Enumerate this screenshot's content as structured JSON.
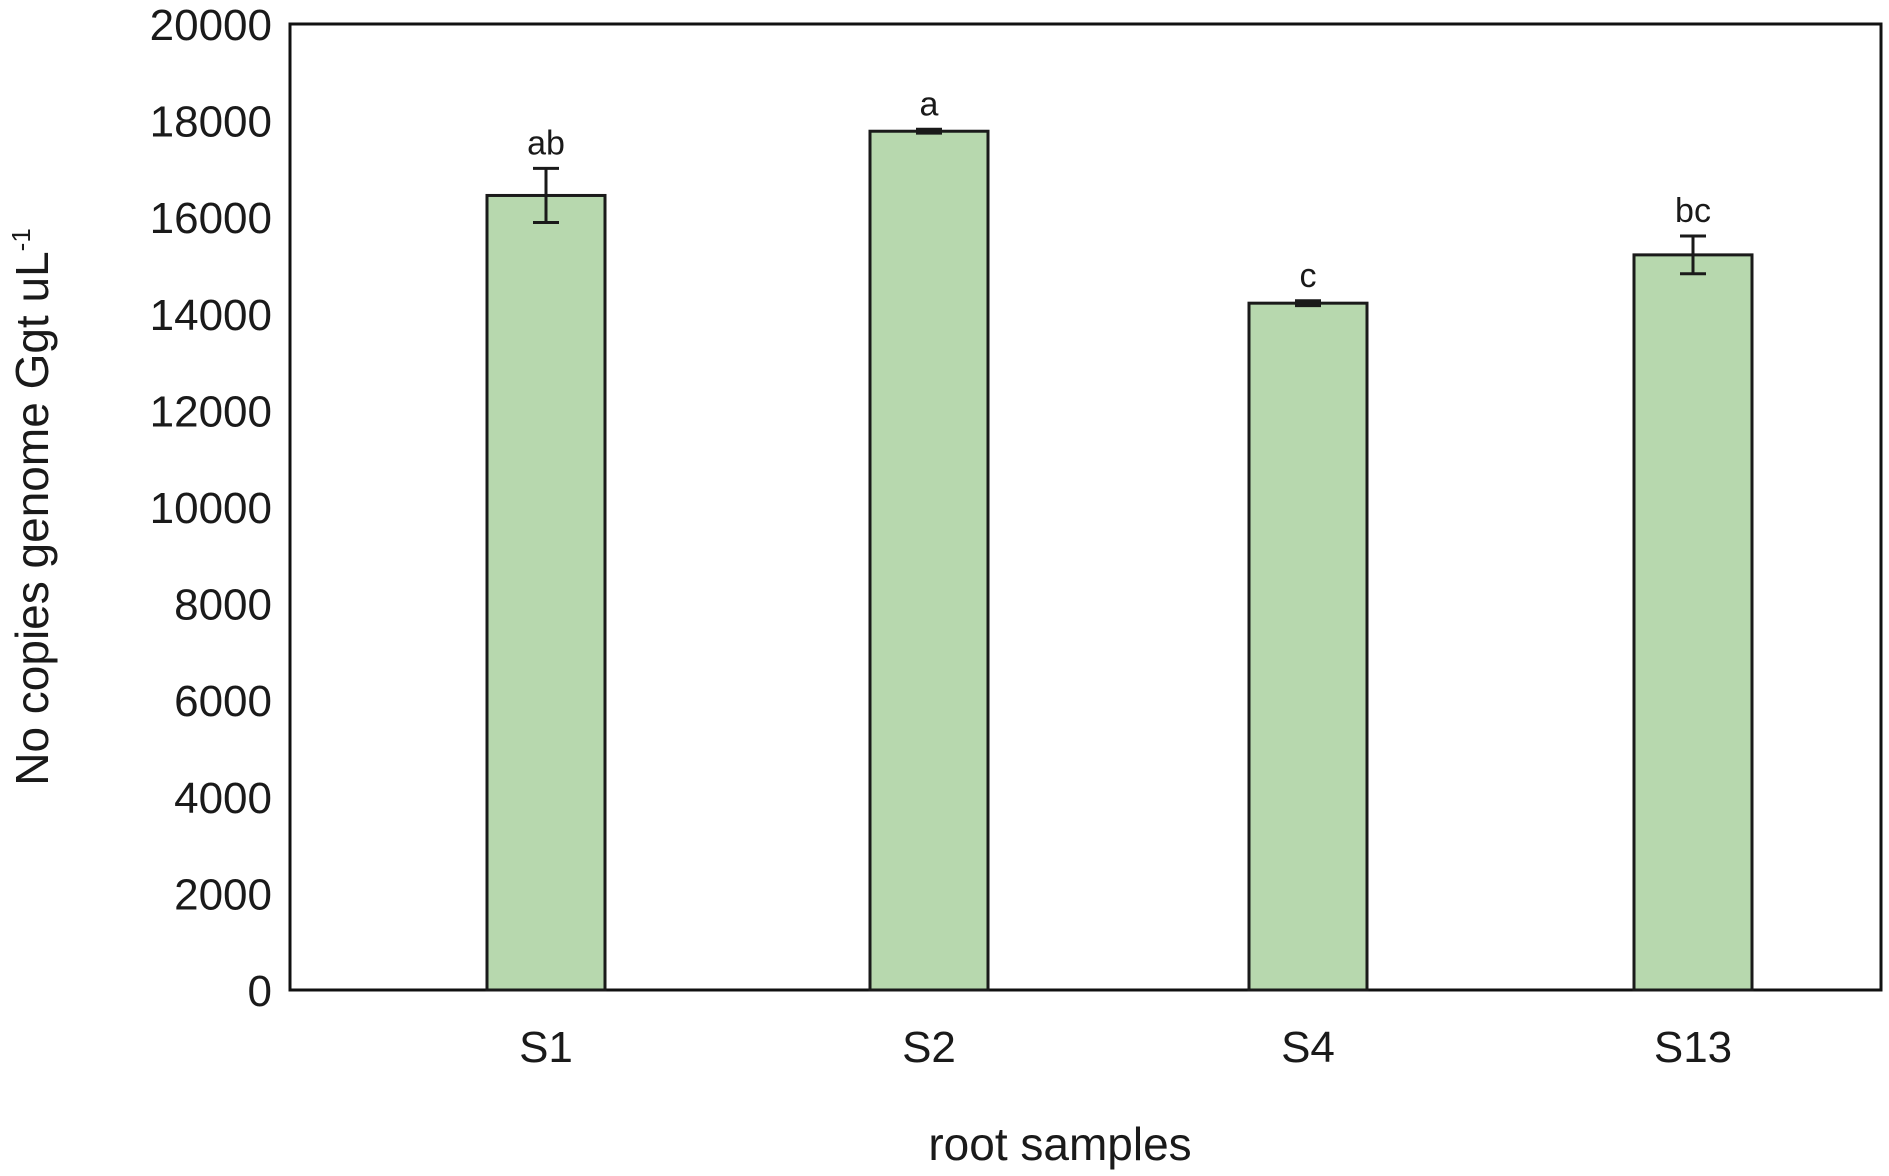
{
  "chart_data": {
    "type": "bar",
    "title": "",
    "xlabel": "root samples",
    "ylabel": {
      "main": "No copies genome Ggt  uL",
      "superscript": "-1"
    },
    "ylim": [
      0,
      20000
    ],
    "yticks": [
      0,
      2000,
      4000,
      6000,
      8000,
      10000,
      12000,
      14000,
      16000,
      18000,
      20000
    ],
    "grid": false,
    "categories": [
      "S1",
      "S2",
      "S4",
      "S13"
    ],
    "values": [
      16450,
      17780,
      14220,
      15220
    ],
    "errors": [
      560,
      40,
      50,
      390
    ],
    "significance_labels": [
      "ab",
      "a",
      "c",
      "bc"
    ],
    "colors": {
      "bar_fill": "#b7d8ae",
      "bar_stroke": "#1a1a1a",
      "axis": "#111111"
    }
  }
}
